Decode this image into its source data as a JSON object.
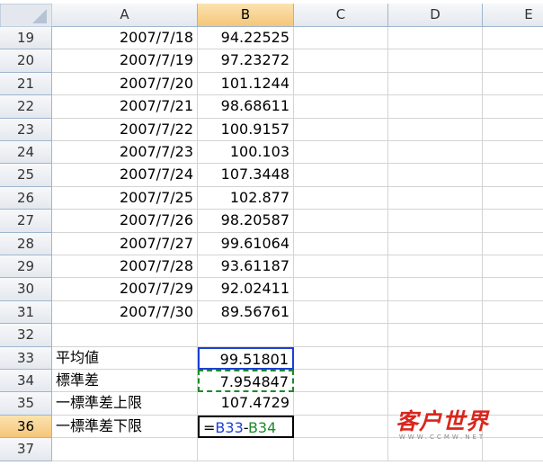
{
  "columns": [
    "A",
    "B",
    "C",
    "D",
    "E"
  ],
  "rows": [
    {
      "num": "19",
      "a": "2007/7/18",
      "b": "94.22525"
    },
    {
      "num": "20",
      "a": "2007/7/19",
      "b": "97.23272"
    },
    {
      "num": "21",
      "a": "2007/7/20",
      "b": "101.1244"
    },
    {
      "num": "22",
      "a": "2007/7/21",
      "b": "98.68611"
    },
    {
      "num": "23",
      "a": "2007/7/22",
      "b": "100.9157"
    },
    {
      "num": "24",
      "a": "2007/7/23",
      "b": "100.103"
    },
    {
      "num": "25",
      "a": "2007/7/24",
      "b": "107.3448"
    },
    {
      "num": "26",
      "a": "2007/7/25",
      "b": "102.877"
    },
    {
      "num": "27",
      "a": "2007/7/26",
      "b": "98.20587"
    },
    {
      "num": "28",
      "a": "2007/7/27",
      "b": "99.61064"
    },
    {
      "num": "29",
      "a": "2007/7/28",
      "b": "93.61187"
    },
    {
      "num": "30",
      "a": "2007/7/29",
      "b": "92.02411"
    },
    {
      "num": "31",
      "a": "2007/7/30",
      "b": "89.56761"
    },
    {
      "num": "32"
    },
    {
      "num": "33",
      "a": "平均値",
      "b": "99.51801"
    },
    {
      "num": "34",
      "a": "標準差",
      "b": "7.954847"
    },
    {
      "num": "35",
      "a": "一標準差上限",
      "b": "107.4729"
    },
    {
      "num": "36",
      "a": "一標準差下限",
      "formula": [
        "=",
        "B33",
        "-",
        "B34"
      ]
    },
    {
      "num": "37"
    }
  ],
  "watermark": {
    "title": "客户世界",
    "url": "WWW.CCMW.NET"
  }
}
